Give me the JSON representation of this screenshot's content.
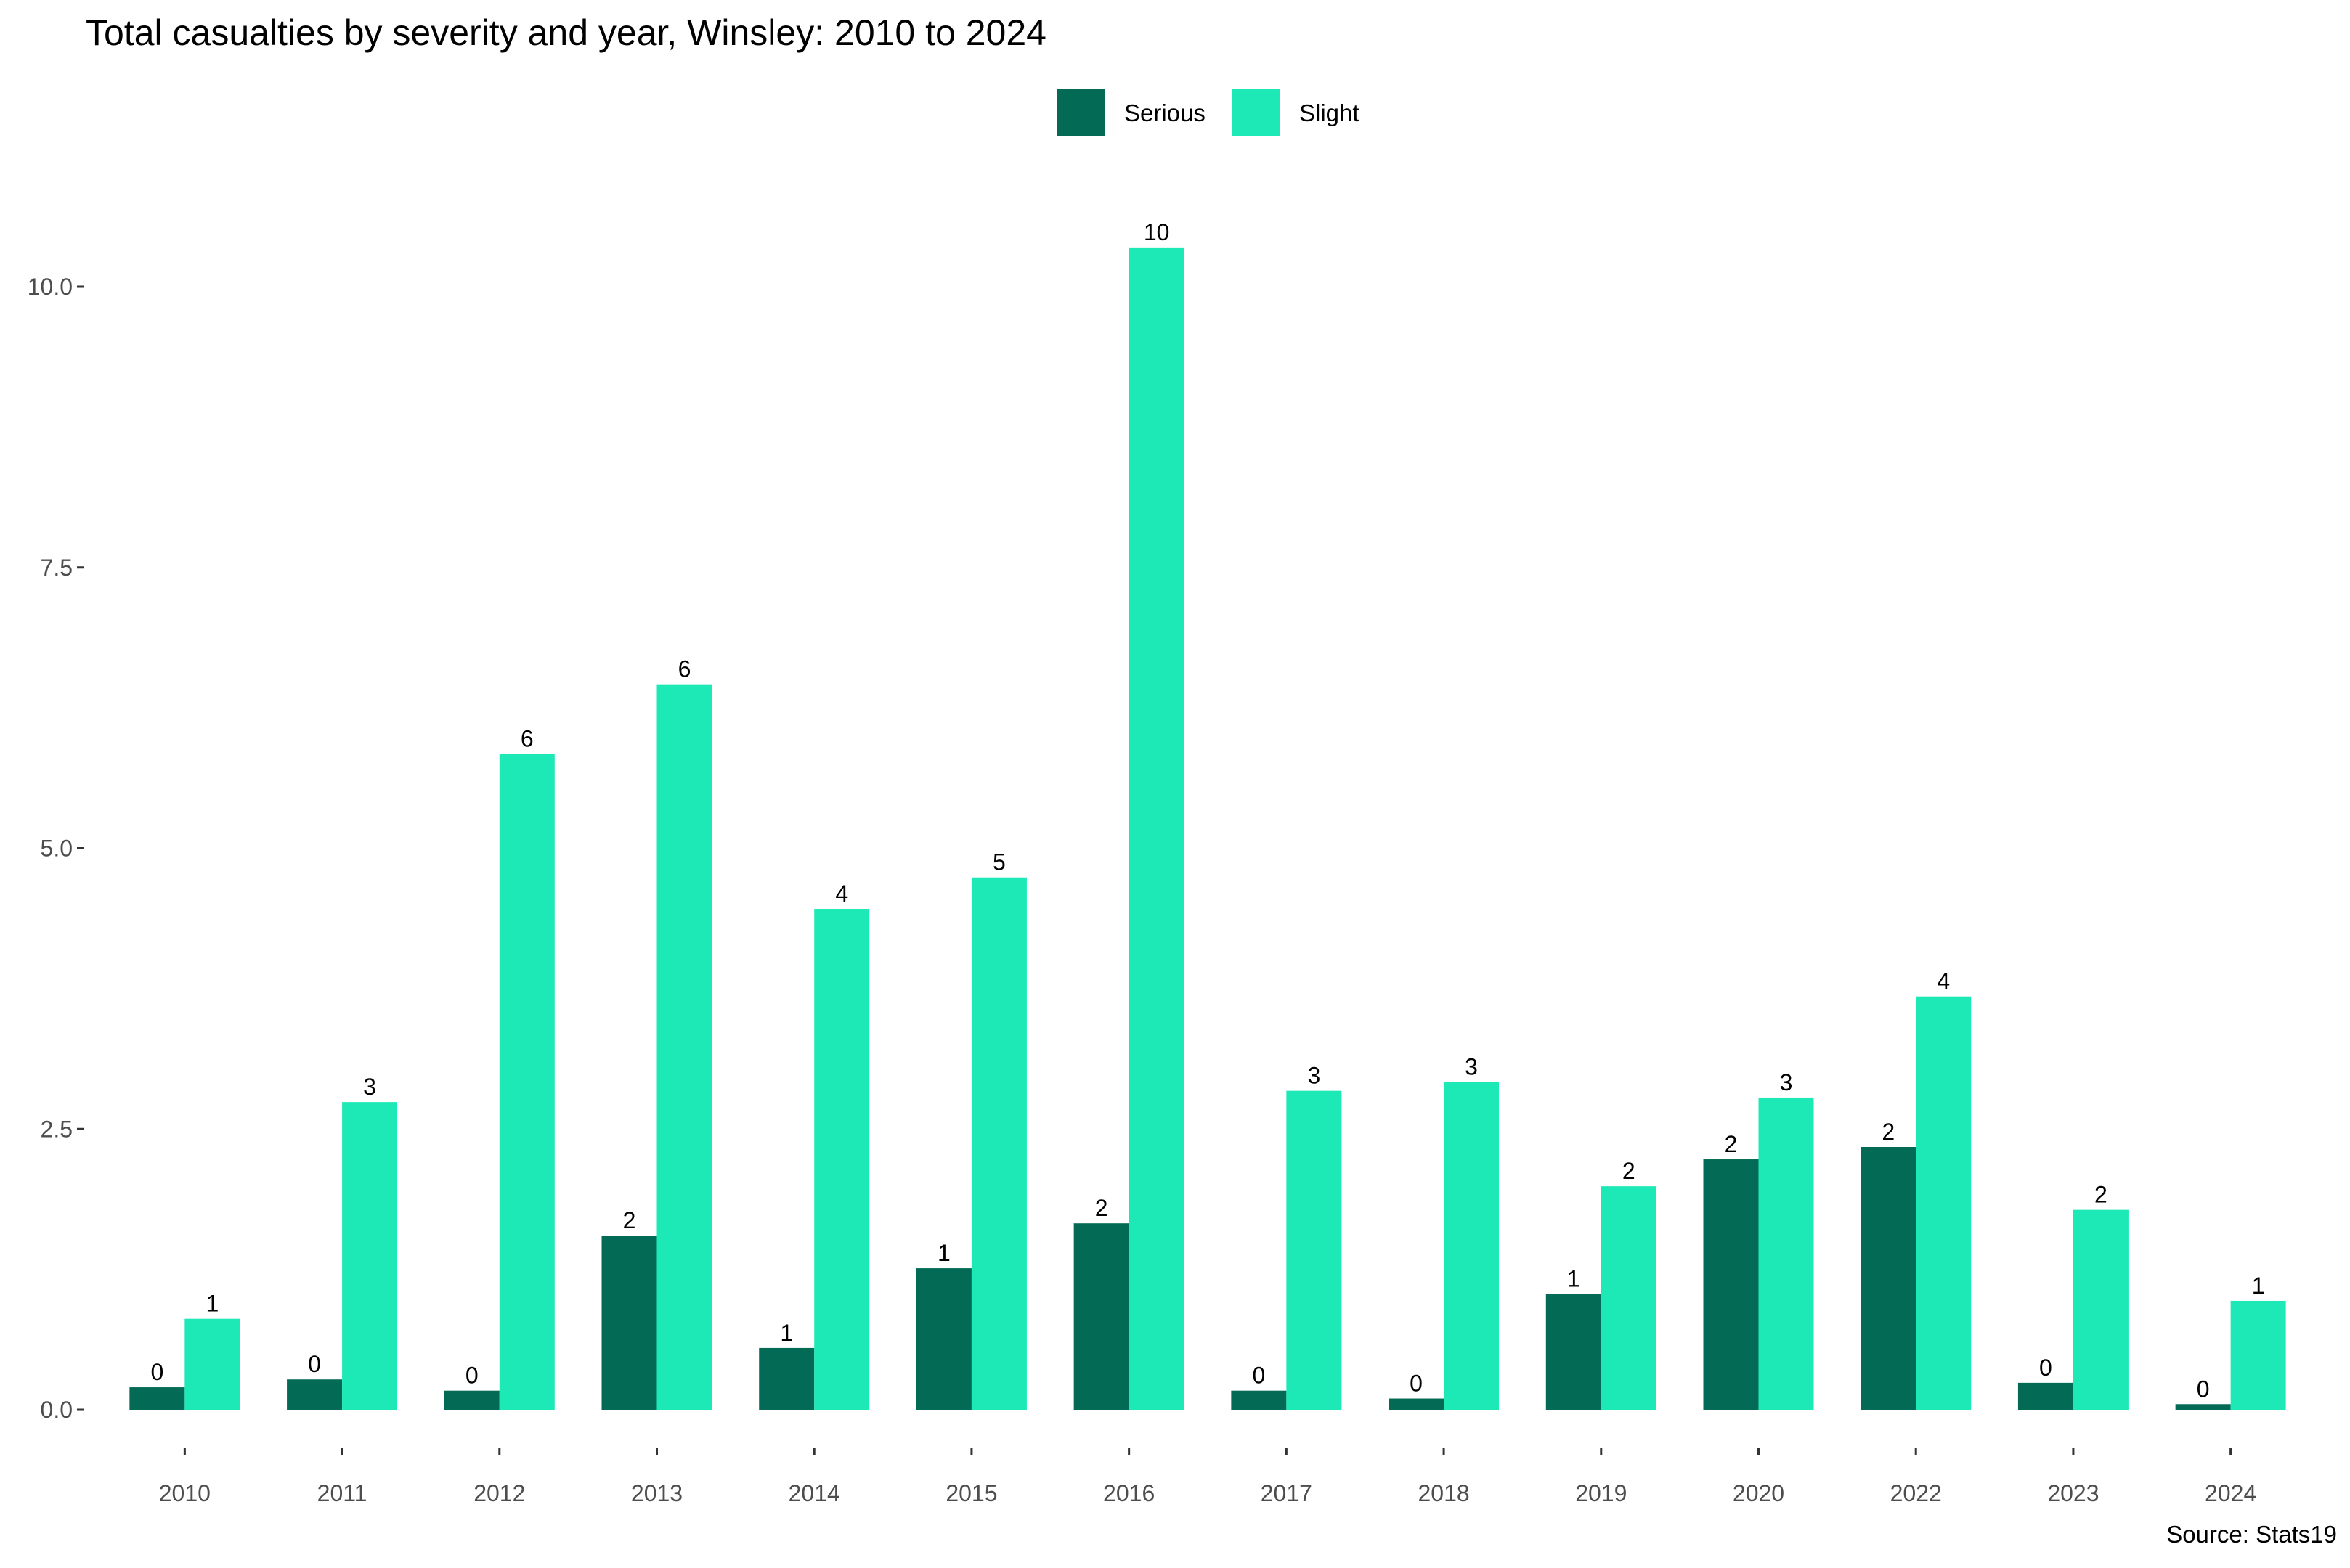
{
  "chart_data": {
    "type": "bar",
    "title": "Total casualties by severity and year, Winsley: 2010 to 2024",
    "caption": "Source: Stats19",
    "xlabel": "",
    "ylabel": "",
    "ylim": [
      -0.3,
      10.9
    ],
    "yticks": [
      {
        "value": 0.0,
        "label": "0.0"
      },
      {
        "value": 2.5,
        "label": "2.5"
      },
      {
        "value": 5.0,
        "label": "5.0"
      },
      {
        "value": 7.5,
        "label": "7.5"
      },
      {
        "value": 10.0,
        "label": "10.0"
      }
    ],
    "grid": false,
    "legend_position": "top",
    "categories": [
      "2010",
      "2011",
      "2012",
      "2013",
      "2014",
      "2015",
      "2016",
      "2017",
      "2018",
      "2019",
      "2020",
      "2022",
      "2023",
      "2024"
    ],
    "series": [
      {
        "name": "Serious",
        "color": "#036b55",
        "values": [
          0.2,
          0.27,
          0.17,
          1.55,
          0.55,
          1.26,
          1.66,
          0.17,
          0.1,
          1.03,
          2.23,
          2.34,
          0.24,
          0.05
        ],
        "labels": [
          "0",
          "0",
          "0",
          "2",
          "1",
          "1",
          "2",
          "0",
          "0",
          "1",
          "2",
          "2",
          "0",
          "0"
        ]
      },
      {
        "name": "Slight",
        "color": "#1de9b6",
        "values": [
          0.81,
          2.74,
          5.84,
          6.46,
          4.46,
          4.74,
          10.35,
          2.84,
          2.92,
          1.99,
          2.78,
          3.68,
          1.78,
          0.97
        ],
        "labels": [
          "1",
          "3",
          "6",
          "6",
          "4",
          "5",
          "10",
          "3",
          "3",
          "2",
          "3",
          "4",
          "2",
          "1"
        ]
      }
    ]
  }
}
